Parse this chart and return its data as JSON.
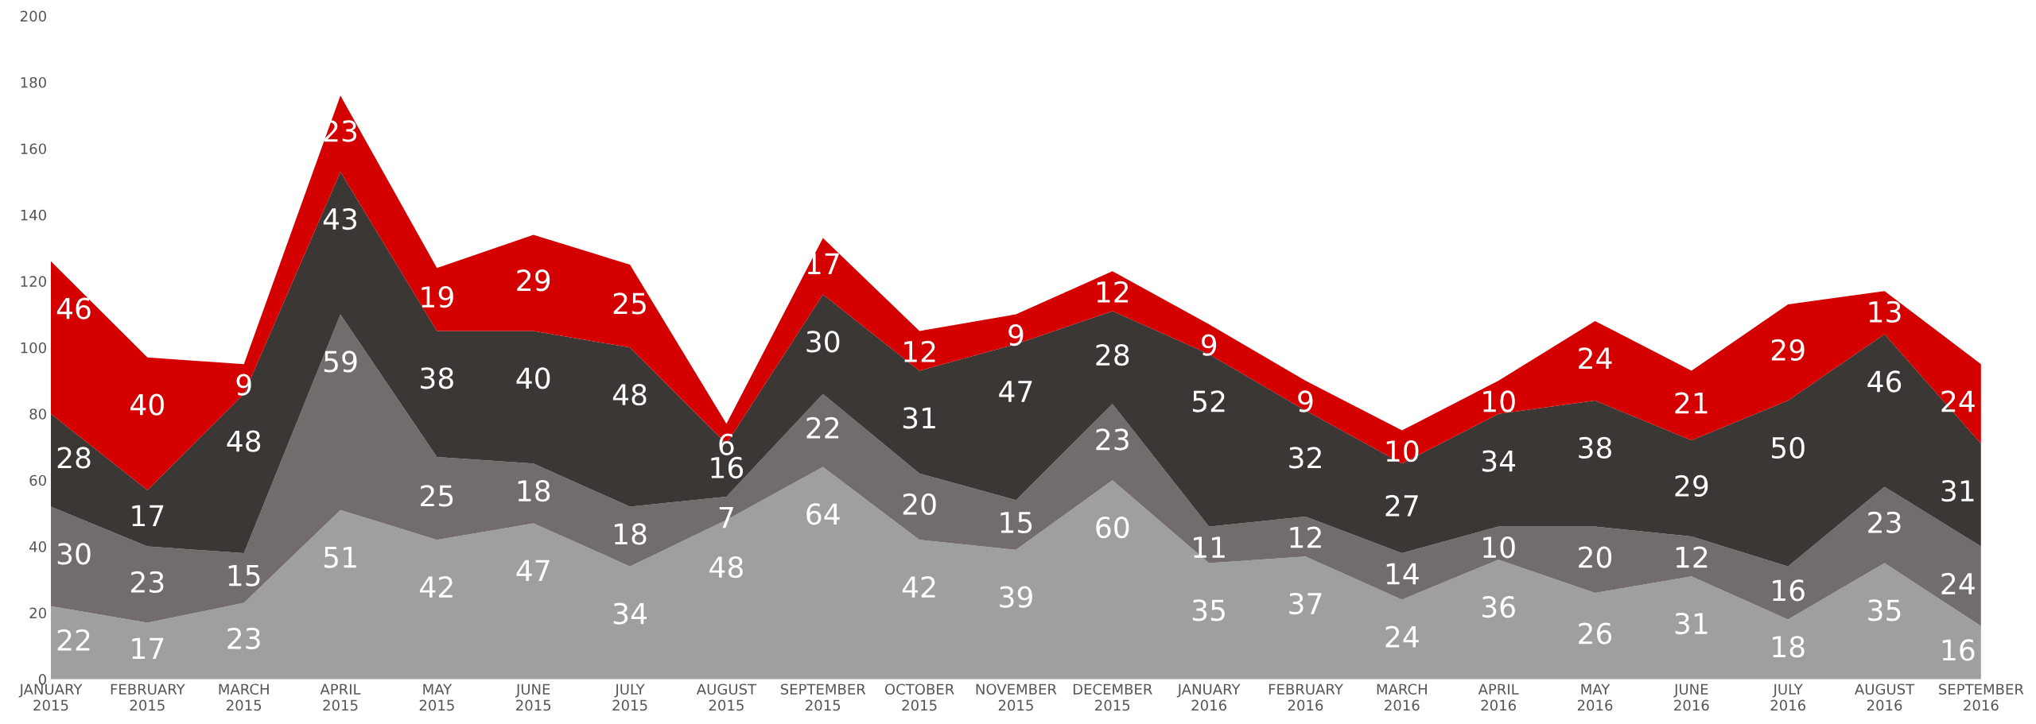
{
  "chart_data": {
    "type": "area",
    "stacked": true,
    "data_labels": true,
    "grid": false,
    "legend": false,
    "categories": [
      "JANUARY\n2015",
      "FEBRUARY\n2015",
      "MARCH\n2015",
      "APRIL\n2015",
      "MAY\n2015",
      "JUNE\n2015",
      "JULY\n2015",
      "AUGUST\n2015",
      "SEPTEMBER\n2015",
      "OCTOBER\n2015",
      "NOVEMBER\n2015",
      "DECEMBER\n2015",
      "JANUARY\n2016",
      "FEBRUARY\n2016",
      "MARCH\n2016",
      "APRIL\n2016",
      "MAY\n2016",
      "JUNE\n2016",
      "JULY\n2016",
      "AUGUST\n2016",
      "SEPTEMBER\n2016"
    ],
    "ylim": [
      0,
      200
    ],
    "yticks": [
      0,
      20,
      40,
      60,
      80,
      100,
      120,
      140,
      160,
      180,
      200
    ],
    "series": [
      {
        "color": "#a09f9f",
        "values": [
          22,
          17,
          23,
          51,
          42,
          47,
          34,
          48,
          64,
          42,
          39,
          60,
          35,
          37,
          24,
          36,
          26,
          31,
          18,
          35,
          16
        ]
      },
      {
        "color": "#726d6c",
        "values": [
          30,
          23,
          15,
          59,
          25,
          18,
          18,
          7,
          22,
          20,
          15,
          23,
          11,
          12,
          14,
          10,
          20,
          12,
          16,
          23,
          24
        ]
      },
      {
        "color": "#3a3735",
        "values": [
          28,
          17,
          48,
          43,
          38,
          40,
          48,
          16,
          30,
          31,
          47,
          28,
          52,
          32,
          27,
          34,
          38,
          29,
          50,
          46,
          31
        ]
      },
      {
        "color": "#d40000",
        "values": [
          46,
          40,
          9,
          23,
          19,
          29,
          25,
          6,
          17,
          12,
          9,
          12,
          9,
          9,
          10,
          10,
          24,
          21,
          29,
          13,
          24
        ]
      }
    ]
  }
}
